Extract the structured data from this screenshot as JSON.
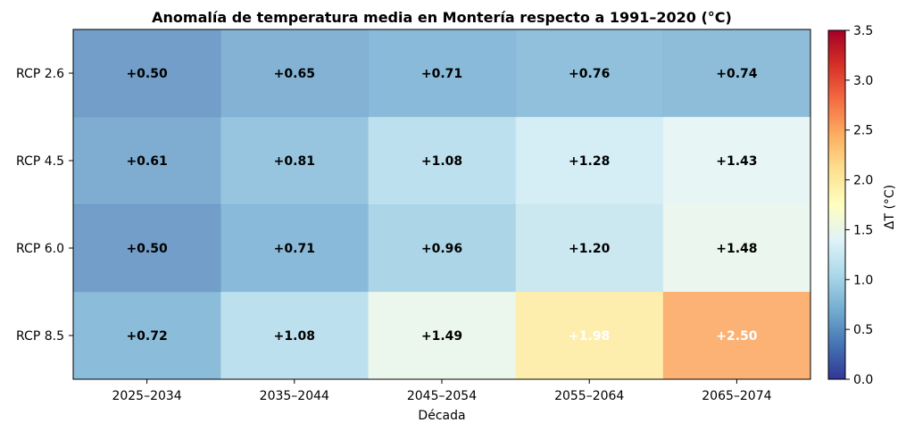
{
  "chart_data": {
    "type": "heatmap",
    "title": "Anomalía de temperatura media en Montería respecto a 1991–2020 (°C)",
    "xlabel": "Década",
    "ylabel": "",
    "x_categories": [
      "2025–2034",
      "2035–2044",
      "2045–2054",
      "2055–2064",
      "2065–2074"
    ],
    "y_categories": [
      "RCP 2.6",
      "RCP 4.5",
      "RCP 6.0",
      "RCP 8.5"
    ],
    "values": [
      [
        0.5,
        0.65,
        0.71,
        0.76,
        0.74
      ],
      [
        0.61,
        0.81,
        1.08,
        1.28,
        1.43
      ],
      [
        0.5,
        0.71,
        0.96,
        1.2,
        1.48
      ],
      [
        0.72,
        1.08,
        1.49,
        1.98,
        2.5
      ]
    ],
    "cell_labels": [
      [
        "+0.50",
        "+0.65",
        "+0.71",
        "+0.76",
        "+0.74"
      ],
      [
        "+0.61",
        "+0.81",
        "+1.08",
        "+1.28",
        "+1.43"
      ],
      [
        "+0.50",
        "+0.71",
        "+0.96",
        "+1.20",
        "+1.48"
      ],
      [
        "+0.72",
        "+1.08",
        "+1.49",
        "+1.98",
        "+2.50"
      ]
    ],
    "colorbar": {
      "label": "ΔT (°C)",
      "range": [
        0.0,
        3.5
      ],
      "ticks": [
        "0.0",
        "0.5",
        "1.0",
        "1.5",
        "2.0",
        "2.5",
        "3.0",
        "3.5"
      ],
      "colormap": "RdYlBu_r",
      "stops": [
        "#313695",
        "#4575b4",
        "#74add1",
        "#abd9e9",
        "#e0f3f8",
        "#ffffbf",
        "#fee090",
        "#fdae61",
        "#f46d43",
        "#d73027",
        "#a50026"
      ]
    },
    "cell_alpha": 0.85,
    "label_color_rule": "white above 1.75, black otherwise",
    "grid": false
  }
}
